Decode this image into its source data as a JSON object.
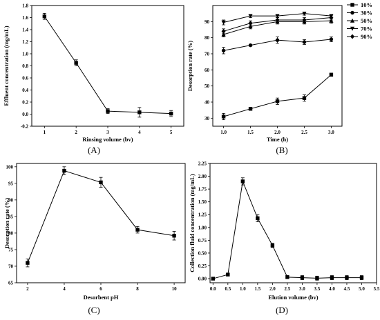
{
  "chart_data": [
    {
      "panel_label": "(A)",
      "type": "line",
      "xlabel": "Rinsing volume (bv)",
      "ylabel": "Effluent concentration (mg/mL)",
      "xlim": [
        0.6,
        5.4
      ],
      "ylim": [
        -0.2,
        1.8
      ],
      "xticks": [
        1,
        2,
        3,
        4,
        5
      ],
      "yticks": [
        -0.2,
        0.0,
        0.2,
        0.4,
        0.6,
        0.8,
        1.0,
        1.2,
        1.4,
        1.6,
        1.8
      ],
      "xtick_labels": [
        "1",
        "2",
        "3",
        "4",
        "5"
      ],
      "ytick_labels": [
        "-0.2",
        "0.0",
        "0.2",
        "0.4",
        "0.6",
        "0.8",
        "1.0",
        "1.2",
        "1.4",
        "1.6",
        "1.8"
      ],
      "marker": "square",
      "series": [
        {
          "x": [
            1,
            2,
            3,
            4,
            5
          ],
          "y": [
            1.62,
            0.85,
            0.05,
            0.03,
            0.01
          ],
          "err": [
            0.05,
            0.05,
            0.04,
            0.08,
            0.05
          ]
        }
      ]
    },
    {
      "panel_label": "(B)",
      "type": "line",
      "xlabel": "Time (h)",
      "ylabel": "Desorption rate (%)",
      "xlim": [
        0.8,
        3.2
      ],
      "ylim": [
        25,
        100
      ],
      "xticks": [
        1.0,
        1.5,
        2.0,
        2.5,
        3.0
      ],
      "yticks": [
        30,
        40,
        50,
        60,
        70,
        80,
        90
      ],
      "xtick_labels": [
        "1.0",
        "1.5",
        "2.0",
        "2.5",
        "3.0"
      ],
      "ytick_labels": [
        "30",
        "40",
        "50",
        "60",
        "70",
        "80",
        "90"
      ],
      "legend_position": "outside-top-right",
      "series": [
        {
          "name": "10%",
          "marker": "square",
          "x": [
            1.0,
            1.5,
            2.0,
            2.5,
            3.0
          ],
          "y": [
            31,
            35.8,
            40.5,
            42.5,
            57
          ],
          "err": [
            2,
            0.8,
            2,
            2,
            1
          ]
        },
        {
          "name": "30%",
          "marker": "circle",
          "x": [
            1.0,
            1.5,
            2.0,
            2.5,
            3.0
          ],
          "y": [
            72,
            75.3,
            78.5,
            77.3,
            79
          ],
          "err": [
            2,
            0.5,
            2,
            1.5,
            1.5
          ]
        },
        {
          "name": "50%",
          "marker": "triangle-up",
          "x": [
            1.0,
            1.5,
            2.0,
            2.5,
            3.0
          ],
          "y": [
            82,
            87,
            90,
            90,
            90.5
          ],
          "err": [
            1.5,
            1.5,
            1.5,
            1.5,
            1.5
          ]
        },
        {
          "name": "70%",
          "marker": "triangle-down",
          "x": [
            1.0,
            1.5,
            2.0,
            2.5,
            3.0
          ],
          "y": [
            89.5,
            93.5,
            93.5,
            95,
            93.5
          ],
          "err": [
            1.5,
            1,
            1,
            1,
            1
          ]
        },
        {
          "name": "90%",
          "marker": "diamond",
          "x": [
            1.0,
            1.5,
            2.0,
            2.5,
            3.0
          ],
          "y": [
            84,
            89,
            91,
            91,
            92.5
          ],
          "err": [
            1.5,
            1.5,
            1.5,
            1.5,
            1.5
          ]
        }
      ]
    },
    {
      "panel_label": "(C)",
      "type": "line",
      "xlabel": "Desorbent pH",
      "ylabel": "Desorption rate (%)",
      "xlim": [
        1.4,
        10.6
      ],
      "ylim": [
        65,
        101
      ],
      "xticks": [
        2,
        4,
        6,
        8,
        10
      ],
      "yticks": [
        65,
        70,
        75,
        80,
        85,
        90,
        95,
        100
      ],
      "xtick_labels": [
        "2",
        "4",
        "6",
        "8",
        "10"
      ],
      "ytick_labels": [
        "65",
        "70",
        "75",
        "80",
        "85",
        "90",
        "95",
        "100"
      ],
      "marker": "square",
      "series": [
        {
          "x": [
            2,
            4,
            6,
            8,
            10
          ],
          "y": [
            71,
            98.8,
            95.3,
            81,
            79.2
          ],
          "err": [
            1.2,
            1.2,
            1.5,
            1,
            1.3
          ]
        }
      ]
    },
    {
      "panel_label": "(D)",
      "type": "line",
      "xlabel": "Elution volume (bv)",
      "ylabel": "Collection fluid concentration (mg/mL)",
      "xlim": [
        -0.1,
        5.5
      ],
      "ylim": [
        -0.08,
        2.25
      ],
      "xticks": [
        0.0,
        0.5,
        1.0,
        1.5,
        2.0,
        2.5,
        3.0,
        3.5,
        4.0,
        4.5,
        5.0,
        5.5
      ],
      "yticks": [
        0.0,
        0.25,
        0.5,
        0.75,
        1.0,
        1.25,
        1.5,
        1.75,
        2.0,
        2.25
      ],
      "xtick_labels": [
        "0.0",
        "0.5",
        "1.0",
        "1.5",
        "2.0",
        "2.5",
        "3.0",
        "3.5",
        "4.0",
        "4.5",
        "5.0",
        "5.5"
      ],
      "ytick_labels": [
        "0.00",
        "0.25",
        "0.50",
        "0.75",
        "1.00",
        "1.25",
        "1.50",
        "1.75",
        "2.00",
        "2.25"
      ],
      "marker": "square",
      "series": [
        {
          "x": [
            0.0,
            0.5,
            1.0,
            1.5,
            2.0,
            2.5,
            3.0,
            3.5,
            4.0,
            4.5,
            5.0
          ],
          "y": [
            0.0,
            0.08,
            1.9,
            1.18,
            0.65,
            0.03,
            0.02,
            0.01,
            0.02,
            0.02,
            0.02
          ],
          "err": [
            0.0,
            0.02,
            0.07,
            0.07,
            0.04,
            0.03,
            0.04,
            0.04,
            0.04,
            0.04,
            0.04
          ]
        }
      ]
    }
  ]
}
